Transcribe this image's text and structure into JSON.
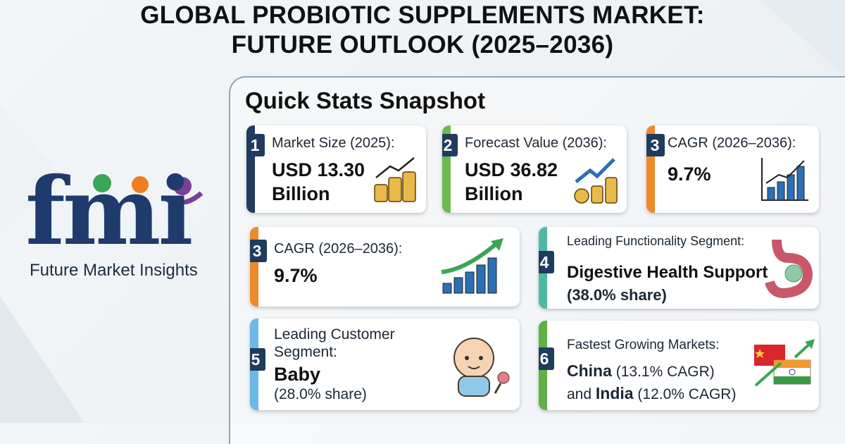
{
  "header": {
    "title_lines": [
      "GLOBAL PROBIOTIC SUPPLEMENTS MARKET:",
      "FUTURE OUTLOOK (2025–2036)"
    ]
  },
  "logo": {
    "mark": "fmi",
    "name": "Future Market Insights"
  },
  "snapshot": {
    "title": "Quick Stats Snapshot",
    "cards": [
      {
        "number": "1",
        "label": "Market Size (2025):",
        "value": [
          "USD 13.30",
          "Billion"
        ]
      },
      {
        "number": "2",
        "label": "Forecast Value (2036):",
        "value": [
          "USD 36.82",
          "Billion"
        ]
      },
      {
        "number": "3",
        "label": "CAGR (2026–2036):",
        "value": [
          "9.7%"
        ]
      },
      {
        "number": "3",
        "label": "CAGR (2026–2036):",
        "value": [
          "9.7%"
        ]
      },
      {
        "number": "4",
        "label": "Leading Functionality Segment:",
        "value": [
          "Digestive Health Support"
        ],
        "detail": "(38.0% share)"
      },
      {
        "number": "5",
        "label": "Leading Customer Segment:",
        "value": [
          "Baby"
        ],
        "detail": "(28.0% share)"
      },
      {
        "number": "6",
        "label": "Fastest Growing Markets:",
        "markets": [
          {
            "name": "China",
            "detail": "(13.1% CAGR)"
          },
          {
            "connector": "and",
            "name": "India",
            "detail": "(12.0% CAGR)"
          }
        ]
      }
    ]
  }
}
